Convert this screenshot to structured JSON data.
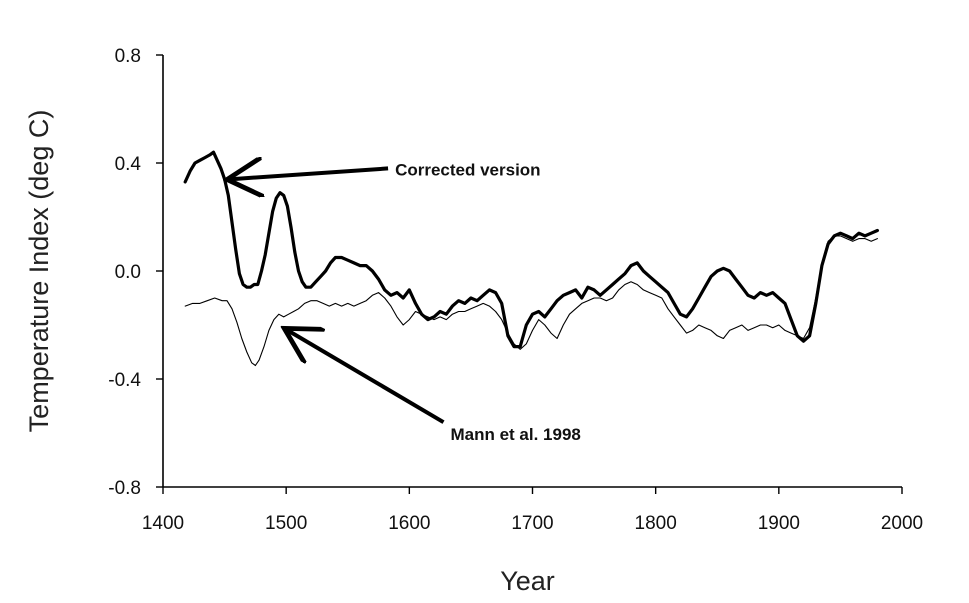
{
  "chart_data": {
    "type": "line",
    "title": "",
    "xlabel": "Year",
    "ylabel": "Temperature Index (deg C)",
    "xlim": [
      1400,
      2000
    ],
    "ylim": [
      -0.8,
      0.8
    ],
    "x_ticks": [
      "1400",
      "1500",
      "1600",
      "1700",
      "1800",
      "1900",
      "2000"
    ],
    "y_ticks": [
      "0.8",
      "0.4",
      "0.0",
      "-0.4",
      "-0.8"
    ],
    "grid": false,
    "series": [
      {
        "name": "Corrected version",
        "line_width": "thick",
        "color": "#000000",
        "points": [
          [
            1418,
            0.33
          ],
          [
            1422,
            0.37
          ],
          [
            1426,
            0.4
          ],
          [
            1430,
            0.41
          ],
          [
            1434,
            0.42
          ],
          [
            1438,
            0.43
          ],
          [
            1441,
            0.44
          ],
          [
            1444,
            0.41
          ],
          [
            1447,
            0.38
          ],
          [
            1450,
            0.34
          ],
          [
            1453,
            0.28
          ],
          [
            1456,
            0.18
          ],
          [
            1459,
            0.08
          ],
          [
            1462,
            -0.01
          ],
          [
            1465,
            -0.05
          ],
          [
            1468,
            -0.06
          ],
          [
            1471,
            -0.06
          ],
          [
            1474,
            -0.05
          ],
          [
            1477,
            -0.05
          ],
          [
            1480,
            0.0
          ],
          [
            1483,
            0.06
          ],
          [
            1486,
            0.14
          ],
          [
            1489,
            0.22
          ],
          [
            1492,
            0.27
          ],
          [
            1495,
            0.29
          ],
          [
            1498,
            0.28
          ],
          [
            1501,
            0.24
          ],
          [
            1504,
            0.16
          ],
          [
            1507,
            0.07
          ],
          [
            1510,
            0.0
          ],
          [
            1513,
            -0.04
          ],
          [
            1516,
            -0.06
          ],
          [
            1520,
            -0.06
          ],
          [
            1524,
            -0.04
          ],
          [
            1528,
            -0.02
          ],
          [
            1532,
            0.0
          ],
          [
            1536,
            0.03
          ],
          [
            1540,
            0.05
          ],
          [
            1545,
            0.05
          ],
          [
            1550,
            0.04
          ],
          [
            1555,
            0.03
          ],
          [
            1560,
            0.02
          ],
          [
            1565,
            0.02
          ],
          [
            1570,
            0.0
          ],
          [
            1575,
            -0.03
          ],
          [
            1580,
            -0.07
          ],
          [
            1585,
            -0.09
          ],
          [
            1590,
            -0.08
          ],
          [
            1595,
            -0.1
          ],
          [
            1600,
            -0.07
          ],
          [
            1605,
            -0.12
          ],
          [
            1610,
            -0.16
          ],
          [
            1615,
            -0.18
          ],
          [
            1620,
            -0.17
          ],
          [
            1625,
            -0.15
          ],
          [
            1630,
            -0.16
          ],
          [
            1635,
            -0.13
          ],
          [
            1640,
            -0.11
          ],
          [
            1645,
            -0.12
          ],
          [
            1650,
            -0.1
          ],
          [
            1655,
            -0.11
          ],
          [
            1660,
            -0.09
          ],
          [
            1665,
            -0.07
          ],
          [
            1670,
            -0.08
          ],
          [
            1675,
            -0.12
          ],
          [
            1680,
            -0.24
          ],
          [
            1685,
            -0.28
          ],
          [
            1690,
            -0.28
          ],
          [
            1695,
            -0.2
          ],
          [
            1700,
            -0.16
          ],
          [
            1705,
            -0.15
          ],
          [
            1710,
            -0.17
          ],
          [
            1715,
            -0.14
          ],
          [
            1720,
            -0.11
          ],
          [
            1725,
            -0.09
          ],
          [
            1730,
            -0.08
          ],
          [
            1735,
            -0.07
          ],
          [
            1740,
            -0.1
          ],
          [
            1745,
            -0.06
          ],
          [
            1750,
            -0.07
          ],
          [
            1755,
            -0.09
          ],
          [
            1760,
            -0.07
          ],
          [
            1765,
            -0.05
          ],
          [
            1770,
            -0.03
          ],
          [
            1775,
            -0.01
          ],
          [
            1780,
            0.02
          ],
          [
            1785,
            0.03
          ],
          [
            1790,
            0.0
          ],
          [
            1795,
            -0.02
          ],
          [
            1800,
            -0.04
          ],
          [
            1805,
            -0.06
          ],
          [
            1810,
            -0.08
          ],
          [
            1815,
            -0.12
          ],
          [
            1820,
            -0.16
          ],
          [
            1825,
            -0.17
          ],
          [
            1830,
            -0.14
          ],
          [
            1835,
            -0.1
          ],
          [
            1840,
            -0.06
          ],
          [
            1845,
            -0.02
          ],
          [
            1850,
            0.0
          ],
          [
            1855,
            0.01
          ],
          [
            1860,
            0.0
          ],
          [
            1865,
            -0.03
          ],
          [
            1870,
            -0.06
          ],
          [
            1875,
            -0.09
          ],
          [
            1880,
            -0.1
          ],
          [
            1885,
            -0.08
          ],
          [
            1890,
            -0.09
          ],
          [
            1895,
            -0.08
          ],
          [
            1900,
            -0.1
          ],
          [
            1905,
            -0.12
          ],
          [
            1910,
            -0.18
          ],
          [
            1915,
            -0.24
          ],
          [
            1920,
            -0.26
          ],
          [
            1925,
            -0.24
          ],
          [
            1930,
            -0.12
          ],
          [
            1935,
            0.02
          ],
          [
            1940,
            0.1
          ],
          [
            1945,
            0.13
          ],
          [
            1950,
            0.14
          ],
          [
            1955,
            0.13
          ],
          [
            1960,
            0.12
          ],
          [
            1965,
            0.14
          ],
          [
            1970,
            0.13
          ],
          [
            1975,
            0.14
          ],
          [
            1980,
            0.15
          ]
        ]
      },
      {
        "name": "Mann et al. 1998",
        "line_width": "thin",
        "color": "#000000",
        "points": [
          [
            1418,
            -0.13
          ],
          [
            1424,
            -0.12
          ],
          [
            1430,
            -0.12
          ],
          [
            1436,
            -0.11
          ],
          [
            1442,
            -0.1
          ],
          [
            1448,
            -0.11
          ],
          [
            1452,
            -0.11
          ],
          [
            1456,
            -0.14
          ],
          [
            1460,
            -0.19
          ],
          [
            1464,
            -0.25
          ],
          [
            1468,
            -0.3
          ],
          [
            1472,
            -0.34
          ],
          [
            1475,
            -0.35
          ],
          [
            1478,
            -0.33
          ],
          [
            1482,
            -0.28
          ],
          [
            1486,
            -0.22
          ],
          [
            1490,
            -0.18
          ],
          [
            1494,
            -0.16
          ],
          [
            1498,
            -0.17
          ],
          [
            1502,
            -0.16
          ],
          [
            1506,
            -0.15
          ],
          [
            1510,
            -0.14
          ],
          [
            1515,
            -0.12
          ],
          [
            1520,
            -0.11
          ],
          [
            1525,
            -0.11
          ],
          [
            1530,
            -0.12
          ],
          [
            1535,
            -0.13
          ],
          [
            1540,
            -0.12
          ],
          [
            1545,
            -0.13
          ],
          [
            1550,
            -0.12
          ],
          [
            1555,
            -0.13
          ],
          [
            1560,
            -0.12
          ],
          [
            1565,
            -0.11
          ],
          [
            1570,
            -0.09
          ],
          [
            1575,
            -0.08
          ],
          [
            1580,
            -0.1
          ],
          [
            1585,
            -0.13
          ],
          [
            1590,
            -0.17
          ],
          [
            1595,
            -0.2
          ],
          [
            1600,
            -0.18
          ],
          [
            1605,
            -0.15
          ],
          [
            1610,
            -0.16
          ],
          [
            1615,
            -0.17
          ],
          [
            1620,
            -0.18
          ],
          [
            1625,
            -0.17
          ],
          [
            1630,
            -0.18
          ],
          [
            1635,
            -0.16
          ],
          [
            1640,
            -0.15
          ],
          [
            1645,
            -0.15
          ],
          [
            1650,
            -0.14
          ],
          [
            1655,
            -0.13
          ],
          [
            1660,
            -0.12
          ],
          [
            1665,
            -0.13
          ],
          [
            1670,
            -0.15
          ],
          [
            1675,
            -0.18
          ],
          [
            1680,
            -0.23
          ],
          [
            1685,
            -0.27
          ],
          [
            1690,
            -0.29
          ],
          [
            1695,
            -0.27
          ],
          [
            1700,
            -0.22
          ],
          [
            1705,
            -0.18
          ],
          [
            1710,
            -0.2
          ],
          [
            1715,
            -0.23
          ],
          [
            1720,
            -0.25
          ],
          [
            1725,
            -0.2
          ],
          [
            1730,
            -0.16
          ],
          [
            1735,
            -0.14
          ],
          [
            1740,
            -0.12
          ],
          [
            1745,
            -0.11
          ],
          [
            1750,
            -0.1
          ],
          [
            1755,
            -0.1
          ],
          [
            1760,
            -0.11
          ],
          [
            1765,
            -0.1
          ],
          [
            1770,
            -0.07
          ],
          [
            1775,
            -0.05
          ],
          [
            1780,
            -0.04
          ],
          [
            1785,
            -0.05
          ],
          [
            1790,
            -0.07
          ],
          [
            1795,
            -0.08
          ],
          [
            1800,
            -0.09
          ],
          [
            1805,
            -0.1
          ],
          [
            1810,
            -0.14
          ],
          [
            1815,
            -0.17
          ],
          [
            1820,
            -0.2
          ],
          [
            1825,
            -0.23
          ],
          [
            1830,
            -0.22
          ],
          [
            1835,
            -0.2
          ],
          [
            1840,
            -0.21
          ],
          [
            1845,
            -0.22
          ],
          [
            1850,
            -0.24
          ],
          [
            1855,
            -0.25
          ],
          [
            1860,
            -0.22
          ],
          [
            1865,
            -0.21
          ],
          [
            1870,
            -0.2
          ],
          [
            1875,
            -0.22
          ],
          [
            1880,
            -0.21
          ],
          [
            1885,
            -0.2
          ],
          [
            1890,
            -0.2
          ],
          [
            1895,
            -0.21
          ],
          [
            1900,
            -0.2
          ],
          [
            1905,
            -0.22
          ],
          [
            1910,
            -0.23
          ],
          [
            1915,
            -0.24
          ],
          [
            1920,
            -0.25
          ],
          [
            1925,
            -0.21
          ],
          [
            1930,
            -0.1
          ],
          [
            1935,
            0.03
          ],
          [
            1940,
            0.11
          ],
          [
            1945,
            0.13
          ],
          [
            1950,
            0.13
          ],
          [
            1955,
            0.12
          ],
          [
            1960,
            0.11
          ],
          [
            1965,
            0.12
          ],
          [
            1970,
            0.12
          ],
          [
            1975,
            0.11
          ],
          [
            1980,
            0.12
          ]
        ]
      }
    ],
    "annotations": [
      {
        "text": "Corrected version",
        "points_to": [
          1452,
          0.34
        ],
        "text_at": [
          1560,
          0.38
        ]
      },
      {
        "text": "Mann et al. 1998",
        "points_to": [
          1498,
          -0.22
        ],
        "text_at": [
          1605,
          -0.56
        ]
      }
    ]
  }
}
